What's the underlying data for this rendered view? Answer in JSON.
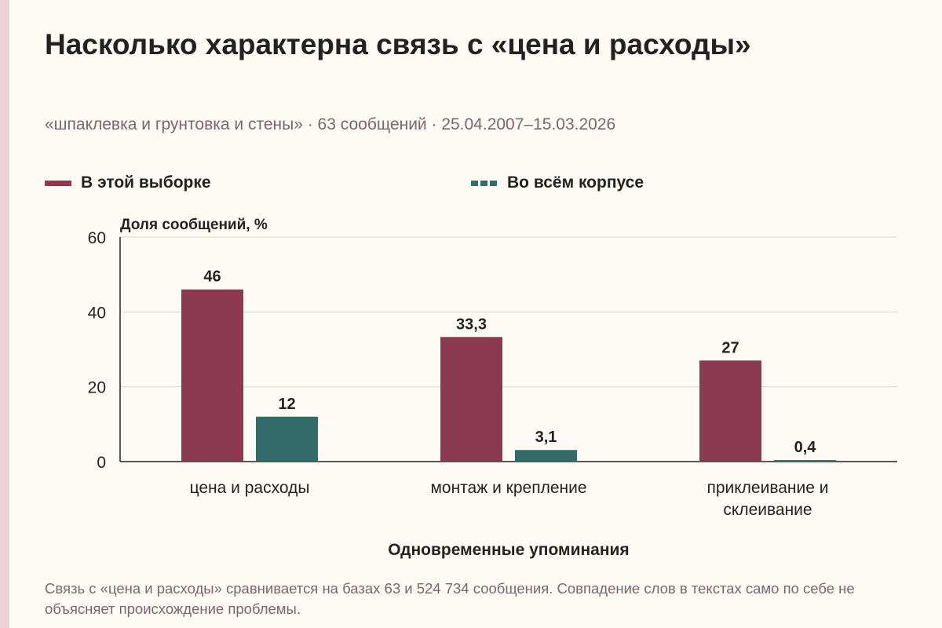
{
  "title": "Насколько характерна связь с «цена и расходы»",
  "subtitle": "«шпаклевка и грунтовка и стены» · 63 сообщений · 25.04.2007–15.03.2026",
  "footnote": "Связь с «цена и расходы» сравнивается на базах 63 и 524 734 сообщения. Совпадение слов в текстах само по себе не объясняет происхождение проблемы.",
  "colors": {
    "sample": "#8b3a52",
    "corpus": "#336b6b",
    "grid": "#dcd6cc",
    "axis": "#222222",
    "background": "#fdfbf3"
  },
  "chart_data": {
    "type": "bar",
    "ylabel": "Доля сообщений, %",
    "xlabel": "Одновременные упоминания",
    "ylim": [
      0,
      60
    ],
    "yticks": [
      0,
      20,
      40,
      60
    ],
    "grid": true,
    "legend_position": "top",
    "categories": [
      [
        "цена и расходы"
      ],
      [
        "монтаж и крепление"
      ],
      [
        "приклеивание и",
        "склеивание"
      ]
    ],
    "series": [
      {
        "name": "В этой выборке",
        "values": [
          46,
          33.3,
          27
        ],
        "labels": [
          "46",
          "33,3",
          "27"
        ]
      },
      {
        "name": "Во всём корпусе",
        "values": [
          12,
          3.1,
          0.4
        ],
        "labels": [
          "12",
          "3,1",
          "0,4"
        ]
      }
    ]
  }
}
